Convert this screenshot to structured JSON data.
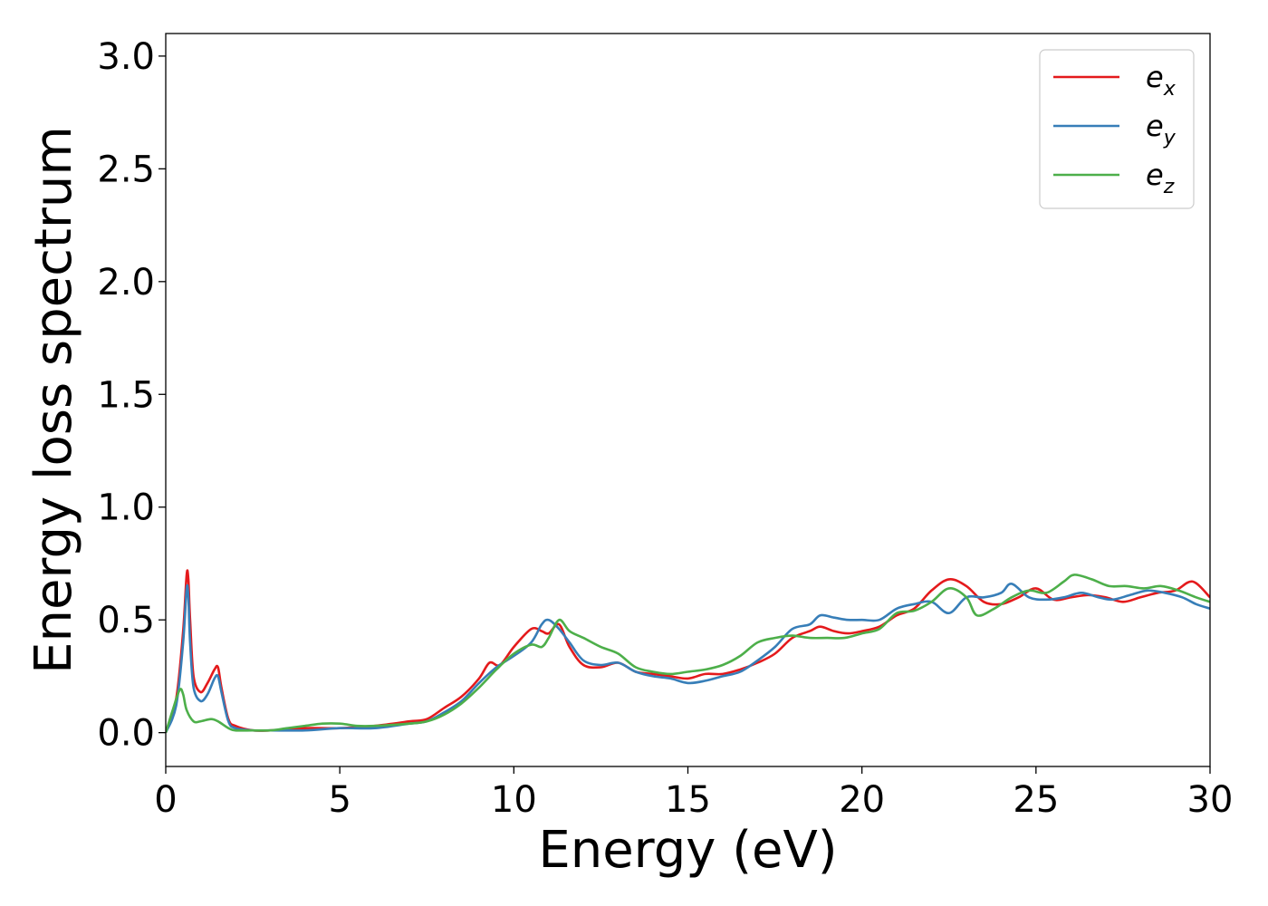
{
  "chart_data": {
    "type": "line",
    "title": "",
    "xlabel": "Energy (eV)",
    "ylabel": "Energy loss spectrum",
    "xlim": [
      0,
      30
    ],
    "ylim": [
      -0.15,
      3.1
    ],
    "xticks": [
      "0",
      "5",
      "10",
      "15",
      "20",
      "25",
      "30"
    ],
    "yticks": [
      "0.0",
      "0.5",
      "1.0",
      "1.5",
      "2.0",
      "2.5",
      "3.0"
    ],
    "grid": false,
    "legend_position": "top-right",
    "series": [
      {
        "name": "e_x",
        "label_base": "e",
        "label_sub": "x",
        "color": "#e41a1c",
        "x": [
          0,
          0.3,
          0.5,
          0.6,
          0.65,
          0.7,
          0.8,
          1.0,
          1.2,
          1.4,
          1.5,
          1.6,
          1.8,
          2.0,
          2.5,
          3,
          4,
          5,
          6,
          7,
          7.5,
          8,
          8.5,
          9,
          9.3,
          9.6,
          10,
          10.5,
          10.8,
          11,
          11.3,
          11.6,
          12,
          12.5,
          13,
          13.5,
          14,
          14.5,
          15,
          15.5,
          16,
          16.5,
          17,
          17.5,
          18,
          18.5,
          18.8,
          19.2,
          19.6,
          20,
          20.5,
          21,
          21.5,
          22,
          22.5,
          23,
          23.5,
          24,
          24.5,
          25,
          25.5,
          26,
          26.5,
          27,
          27.5,
          28,
          28.5,
          29,
          29.5,
          30
        ],
        "y": [
          0.0,
          0.15,
          0.45,
          0.7,
          0.68,
          0.5,
          0.25,
          0.18,
          0.22,
          0.28,
          0.29,
          0.2,
          0.06,
          0.03,
          0.01,
          0.01,
          0.02,
          0.02,
          0.03,
          0.05,
          0.06,
          0.11,
          0.16,
          0.24,
          0.31,
          0.3,
          0.38,
          0.46,
          0.45,
          0.44,
          0.48,
          0.38,
          0.3,
          0.29,
          0.31,
          0.27,
          0.26,
          0.25,
          0.24,
          0.26,
          0.26,
          0.28,
          0.31,
          0.35,
          0.42,
          0.45,
          0.47,
          0.45,
          0.44,
          0.45,
          0.47,
          0.52,
          0.55,
          0.63,
          0.68,
          0.65,
          0.58,
          0.57,
          0.6,
          0.64,
          0.59,
          0.6,
          0.61,
          0.6,
          0.58,
          0.6,
          0.62,
          0.63,
          0.67,
          0.6
        ]
      },
      {
        "name": "e_y",
        "label_base": "e",
        "label_sub": "y",
        "color": "#377eb8",
        "x": [
          0,
          0.3,
          0.5,
          0.6,
          0.65,
          0.7,
          0.8,
          1.0,
          1.2,
          1.4,
          1.5,
          1.6,
          1.8,
          2.0,
          2.5,
          3,
          4,
          5,
          6,
          7,
          7.5,
          8,
          8.5,
          9,
          9.5,
          10,
          10.5,
          10.8,
          11,
          11.3,
          11.6,
          12,
          12.5,
          13,
          13.5,
          14,
          14.5,
          15,
          15.5,
          16,
          16.5,
          17,
          17.5,
          18,
          18.5,
          18.8,
          19.2,
          19.6,
          20,
          20.5,
          21,
          21.5,
          22,
          22.5,
          23,
          23.5,
          24,
          24.3,
          24.8,
          25.3,
          25.8,
          26.3,
          26.8,
          27.2,
          27.7,
          28.2,
          28.7,
          29.2,
          29.6,
          30
        ],
        "y": [
          0.0,
          0.12,
          0.4,
          0.64,
          0.6,
          0.4,
          0.2,
          0.14,
          0.17,
          0.24,
          0.25,
          0.18,
          0.05,
          0.02,
          0.01,
          0.01,
          0.01,
          0.02,
          0.02,
          0.04,
          0.05,
          0.09,
          0.14,
          0.22,
          0.29,
          0.34,
          0.4,
          0.48,
          0.5,
          0.46,
          0.4,
          0.32,
          0.3,
          0.31,
          0.27,
          0.25,
          0.24,
          0.22,
          0.23,
          0.25,
          0.27,
          0.32,
          0.38,
          0.46,
          0.48,
          0.52,
          0.51,
          0.5,
          0.5,
          0.5,
          0.55,
          0.57,
          0.58,
          0.53,
          0.6,
          0.6,
          0.62,
          0.66,
          0.6,
          0.59,
          0.6,
          0.62,
          0.6,
          0.59,
          0.61,
          0.63,
          0.62,
          0.6,
          0.57,
          0.55
        ]
      },
      {
        "name": "e_z",
        "label_base": "e",
        "label_sub": "z",
        "color": "#4daf4a",
        "x": [
          0,
          0.2,
          0.4,
          0.5,
          0.6,
          0.8,
          1.0,
          1.3,
          1.5,
          1.8,
          2.0,
          2.5,
          3,
          3.5,
          4,
          4.5,
          5,
          5.5,
          6,
          7,
          7.5,
          8,
          8.5,
          9,
          9.5,
          10,
          10.5,
          10.8,
          11,
          11.3,
          11.6,
          12,
          12.5,
          13,
          13.5,
          14,
          14.5,
          15,
          15.5,
          16,
          16.5,
          17,
          17.5,
          18,
          18.5,
          19,
          19.5,
          20,
          20.5,
          21,
          21.5,
          22,
          22.5,
          23,
          23.3,
          23.8,
          24.3,
          24.8,
          25.3,
          25.8,
          26.1,
          26.6,
          27.1,
          27.6,
          28.1,
          28.6,
          29.1,
          29.6,
          30
        ],
        "y": [
          0.0,
          0.1,
          0.19,
          0.17,
          0.1,
          0.05,
          0.05,
          0.06,
          0.05,
          0.02,
          0.01,
          0.01,
          0.01,
          0.02,
          0.03,
          0.04,
          0.04,
          0.03,
          0.03,
          0.04,
          0.05,
          0.08,
          0.13,
          0.2,
          0.28,
          0.35,
          0.39,
          0.38,
          0.42,
          0.5,
          0.45,
          0.42,
          0.38,
          0.35,
          0.29,
          0.27,
          0.26,
          0.27,
          0.28,
          0.3,
          0.34,
          0.4,
          0.42,
          0.43,
          0.42,
          0.42,
          0.42,
          0.44,
          0.46,
          0.53,
          0.54,
          0.58,
          0.64,
          0.6,
          0.52,
          0.55,
          0.6,
          0.63,
          0.62,
          0.67,
          0.7,
          0.68,
          0.65,
          0.65,
          0.64,
          0.65,
          0.63,
          0.6,
          0.58
        ]
      }
    ]
  }
}
